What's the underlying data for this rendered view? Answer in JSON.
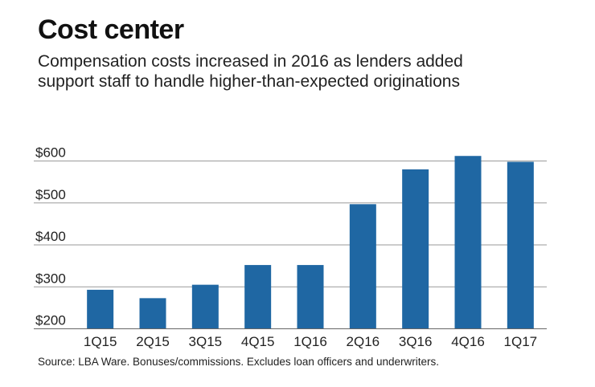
{
  "header": {
    "title": "Cost center",
    "subtitle_lines": [
      "Compensation costs increased in 2016 as lenders added",
      "support staff to handle higher-than-expected originations"
    ]
  },
  "footer": {
    "source": "Source: LBA Ware. Bonuses/commissions. Excludes loan officers and underwriters."
  },
  "chart_data": {
    "type": "bar",
    "title": "Cost center",
    "subtitle": "Compensation costs increased in 2016 as lenders added support staff to handle higher-than-expected originations",
    "categories": [
      "1Q15",
      "2Q15",
      "3Q15",
      "4Q15",
      "1Q16",
      "2Q16",
      "3Q16",
      "4Q16",
      "1Q17"
    ],
    "values": [
      293,
      273,
      305,
      352,
      352,
      497,
      580,
      612,
      598
    ],
    "ylim": [
      200,
      600
    ],
    "yticks": [
      200,
      300,
      400,
      500,
      600
    ],
    "ytick_labels": [
      "$200",
      "$300",
      "$400",
      "$500",
      "$600"
    ],
    "xlabel": "",
    "ylabel": "",
    "grid": true,
    "bar_color": "#1f67a3",
    "grid_color": "#9a9a9a"
  }
}
